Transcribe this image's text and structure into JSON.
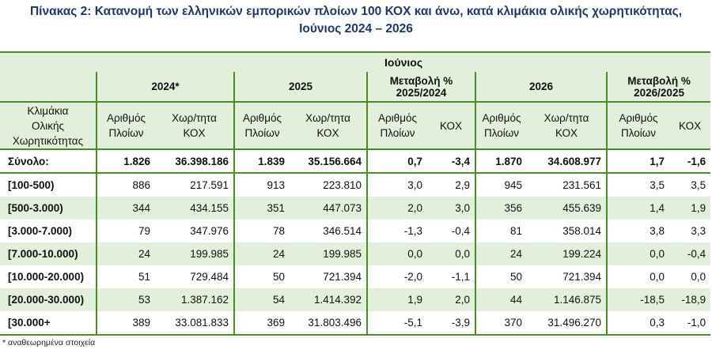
{
  "title": {
    "line1": "Πίνακας 2: Κατανομή των ελληνικών εμπορικών πλοίων 100 ΚΟΧ και άνω, κατά κλιμάκια ολικής χωρητικότητας,",
    "line2": "Ιούνιος 2024 – 2026"
  },
  "table": {
    "month": "Ιούνιος",
    "years": {
      "y2024": "2024*",
      "y2025": "2025",
      "chg2025_line1": "Μεταβολή %",
      "chg2025_line2": "2025/2024",
      "y2026": "2026",
      "chg2026_line1": "Μεταβολή %",
      "chg2026_line2": "2026/2025"
    },
    "row_header": {
      "line1": "Κλιμάκια",
      "line2": "Ολικής",
      "line3": "Χωρητικότητας"
    },
    "col_headers": {
      "ships_line1": "Αριθμός",
      "ships_line2": "Πλοίων",
      "grt_line1": "Χωρ/τητα",
      "grt_line2": "ΚΟΧ",
      "kox": "ΚΟΧ"
    },
    "total": {
      "label": "Σύνολο:",
      "values": [
        "1.826",
        "36.398.186",
        "1.839",
        "35.156.664",
        "0,7",
        "-3,4",
        "1.870",
        "34.608.977",
        "1,7",
        "-1,6"
      ]
    },
    "rows": [
      {
        "label": "[100-500)",
        "values": [
          "886",
          "217.591",
          "913",
          "223.810",
          "3,0",
          "2,9",
          "945",
          "231.561",
          "3,5",
          "3,5"
        ]
      },
      {
        "label": "[500-3.000)",
        "values": [
          "344",
          "434.155",
          "351",
          "447.073",
          "2,0",
          "3,0",
          "356",
          "455.639",
          "1,4",
          "1,9"
        ]
      },
      {
        "label": "[3.000-7.000)",
        "values": [
          "79",
          "347.976",
          "78",
          "346.514",
          "-1,3",
          "-0,4",
          "81",
          "358.014",
          "3,8",
          "3,3"
        ]
      },
      {
        "label": "[7.000-10.000)",
        "values": [
          "24",
          "199.985",
          "24",
          "199.985",
          "0,0",
          "0,0",
          "24",
          "199.224",
          "0,0",
          "-0,4"
        ]
      },
      {
        "label": "[10.000-20.000)",
        "values": [
          "51",
          "729.484",
          "50",
          "721.394",
          "-2,0",
          "-1,1",
          "50",
          "721.394",
          "0,0",
          "0,0"
        ]
      },
      {
        "label": "[20.000-30.000)",
        "values": [
          "53",
          "1.387.162",
          "54",
          "1.414.392",
          "1,9",
          "2,0",
          "44",
          "1.146.875",
          "-18,5",
          "-18,9"
        ]
      },
      {
        "label": "[30.000+",
        "values": [
          "389",
          "33.081.833",
          "369",
          "31.803.496",
          "-5,1",
          "-3,9",
          "370",
          "31.496.270",
          "0,3",
          "-1,0"
        ]
      }
    ]
  },
  "footnote": "* αναθεωρημένα στοιχεία"
}
